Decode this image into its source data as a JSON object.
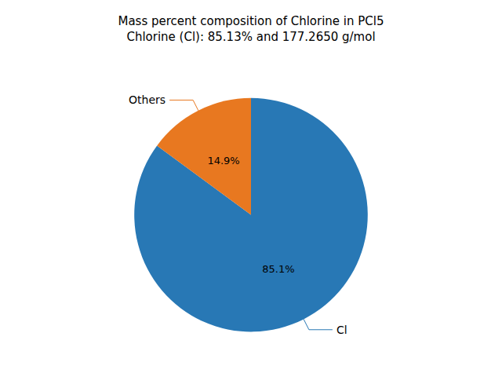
{
  "chart_data": {
    "type": "pie",
    "title": "Mass percent composition of Chlorine in PCl5\nChlorine (Cl): 85.13% and 177.2650 g/mol",
    "categories": [
      "Cl",
      "Others"
    ],
    "values": [
      85.1,
      14.9
    ],
    "value_labels": [
      "85.1%",
      "14.9%"
    ],
    "colors": [
      "#2878b5",
      "#e87820"
    ],
    "data_labels": true
  }
}
